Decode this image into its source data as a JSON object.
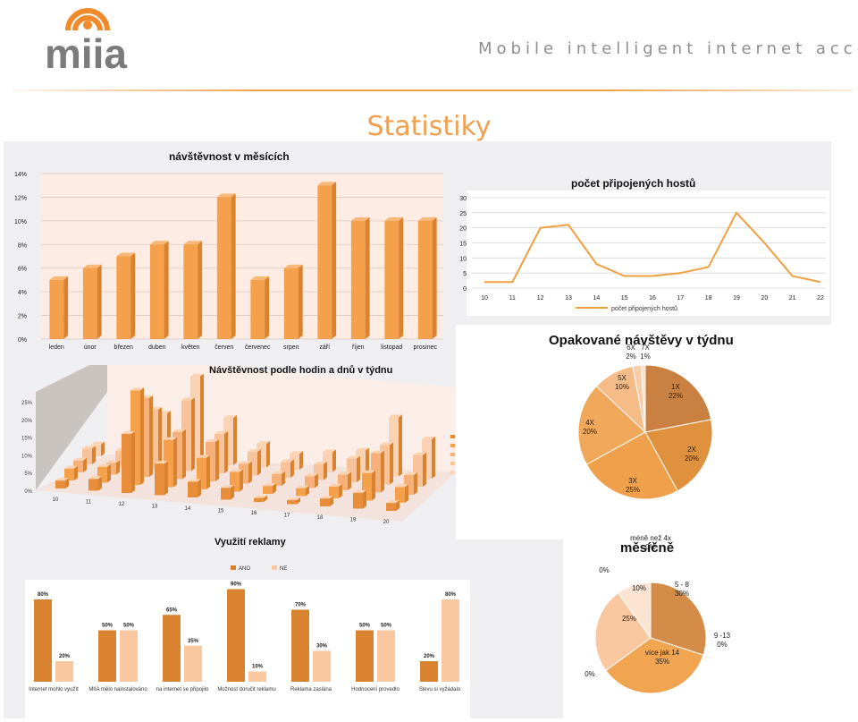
{
  "header": {
    "logo_text": "miia",
    "tagline": "Mobile intelligent internet access",
    "page_title": "Statistiky"
  },
  "colors": {
    "orange": "#f5a04a",
    "orange_dark": "#d9822f",
    "orange_light": "#f9c8a0",
    "line": "#f0a040"
  },
  "chart_data": [
    {
      "id": "monthly",
      "type": "bar",
      "title": "návštěvnost v měsících",
      "categories": [
        "leden",
        "únor",
        "březen",
        "duben",
        "květen",
        "červen",
        "červenec",
        "srpen",
        "září",
        "říjen",
        "listopad",
        "prosinec"
      ],
      "values": [
        5,
        6,
        7,
        8,
        8,
        12,
        5,
        6,
        13,
        10,
        10,
        10
      ],
      "ylim": [
        0,
        14
      ],
      "ytick_labels": [
        "0%",
        "2%",
        "4%",
        "6%",
        "8%",
        "10%",
        "12%",
        "14%"
      ],
      "grid": true
    },
    {
      "id": "hosts",
      "type": "line",
      "title": "počet připojených hostů",
      "x": [
        10,
        11,
        12,
        13,
        14,
        15,
        16,
        17,
        18,
        19,
        20,
        21,
        22
      ],
      "series": [
        {
          "name": "počet připojených hostů",
          "values": [
            2,
            2,
            20,
            21,
            8,
            4,
            4,
            5,
            7,
            25,
            15,
            4,
            2
          ]
        }
      ],
      "ylim": [
        0,
        30
      ],
      "ytick_labels": [
        "0",
        "5",
        "10",
        "15",
        "20",
        "25",
        "30"
      ],
      "legend": "bottom"
    },
    {
      "id": "hourly",
      "type": "bar",
      "title": "Návštěvnost podle hodin a dnů v týdnu",
      "categories": [
        "10",
        "11",
        "12",
        "13",
        "14",
        "15",
        "16",
        "17",
        "18",
        "19",
        "20"
      ],
      "series": [
        {
          "values": [
            2,
            3,
            15,
            8,
            4,
            3,
            1,
            1,
            2,
            4,
            2
          ]
        },
        {
          "values": [
            3,
            4,
            24,
            12,
            8,
            5,
            2,
            2,
            3,
            7,
            4
          ]
        },
        {
          "values": [
            3,
            3,
            20,
            12,
            10,
            5,
            3,
            3,
            4,
            10,
            5
          ]
        },
        {
          "values": [
            4,
            4,
            15,
            18,
            10,
            6,
            4,
            4,
            6,
            10,
            8
          ]
        },
        {
          "values": [
            3,
            4,
            12,
            22,
            12,
            6,
            4,
            5,
            6,
            15,
            10
          ]
        }
      ],
      "ylim": [
        0,
        25
      ],
      "ytick_labels": [
        "0%",
        "5%",
        "10%",
        "15%",
        "20%",
        "25%"
      ]
    },
    {
      "id": "repeat",
      "type": "pie",
      "title": "Opakované návštěvy v týdnu",
      "slices": [
        {
          "label": "1X",
          "value": 22,
          "pct": "22%"
        },
        {
          "label": "2X",
          "value": 20,
          "pct": "20%"
        },
        {
          "label": "3X",
          "value": 25,
          "pct": "25%"
        },
        {
          "label": "4X",
          "value": 20,
          "pct": "20%"
        },
        {
          "label": "5X",
          "value": 10,
          "pct": "10%"
        },
        {
          "label": "6X",
          "value": 2,
          "pct": "2%"
        },
        {
          "label": "7X",
          "value": 1,
          "pct": "1%"
        }
      ]
    },
    {
      "id": "ads",
      "type": "bar",
      "title": "Využití reklamy",
      "legend": [
        "ANO",
        "NE"
      ],
      "categories": [
        "Internet mohlo využít",
        "MIIA mělo nainstalováno",
        "na internet se připojilo",
        "Možnost doručit reklamu",
        "Reklama zaslána",
        "Hodnocení provedlo",
        "Slevu si vyžádalo"
      ],
      "series": [
        {
          "name": "ANO",
          "values": [
            80,
            50,
            65,
            90,
            70,
            50,
            20
          ]
        },
        {
          "name": "NE",
          "values": [
            20,
            50,
            35,
            10,
            30,
            50,
            80
          ]
        }
      ],
      "ylim": [
        0,
        100
      ]
    },
    {
      "id": "monthly_pie",
      "type": "pie",
      "title": "měsíčně",
      "slices": [
        {
          "label": "5 - 8",
          "value": 30,
          "pct": "30%"
        },
        {
          "label": "9 -13",
          "value": 0,
          "pct": "0%"
        },
        {
          "label": "více jak 14",
          "value": 35,
          "pct": "35%"
        },
        {
          "label": "",
          "value": 0,
          "pct": "0%"
        },
        {
          "label": "",
          "value": 25,
          "pct": "25%"
        },
        {
          "label": "",
          "value": 0,
          "pct": "0%"
        },
        {
          "label": "",
          "value": 10,
          "pct": "10%"
        },
        {
          "label": "méně než 4x",
          "value": 0,
          "pct": "0%"
        }
      ]
    }
  ]
}
